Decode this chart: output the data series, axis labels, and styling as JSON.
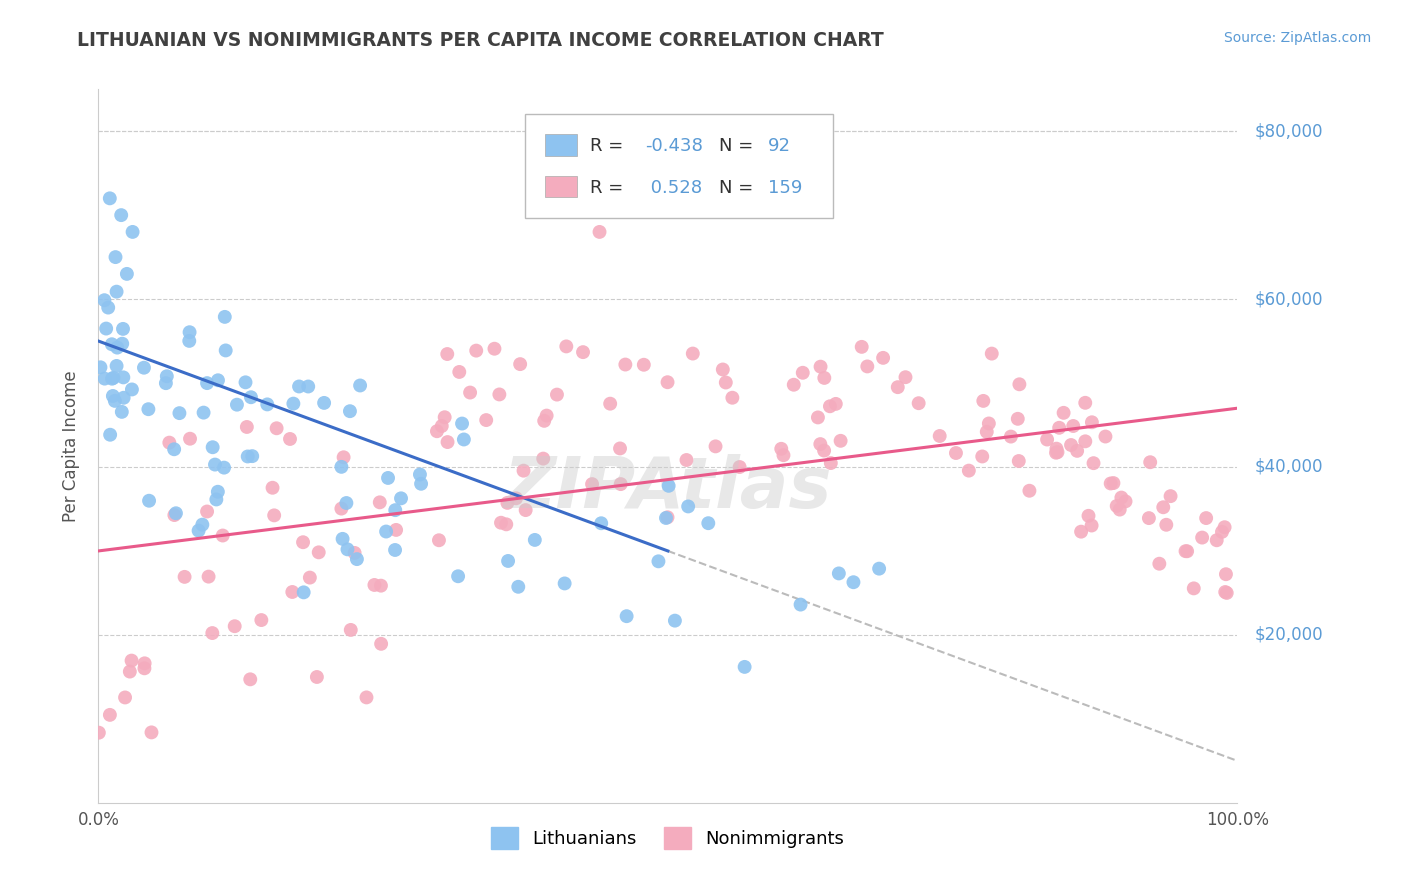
{
  "title": "LITHUANIAN VS NONIMMIGRANTS PER CAPITA INCOME CORRELATION CHART",
  "source_text": "Source: ZipAtlas.com",
  "ylabel": "Per Capita Income",
  "xlim": [
    0.0,
    100.0
  ],
  "ylim": [
    0,
    85000
  ],
  "yticks": [
    20000,
    40000,
    60000,
    80000
  ],
  "ytick_labels": [
    "$20,000",
    "$40,000",
    "$60,000",
    "$80,000"
  ],
  "xtick_labels": [
    "0.0%",
    "100.0%"
  ],
  "legend_labels": [
    "Lithuanians",
    "Nonimmigrants"
  ],
  "r_blue": -0.438,
  "n_blue": 92,
  "r_pink": 0.528,
  "n_pink": 159,
  "blue_color": "#8EC3F0",
  "pink_color": "#F4ACBE",
  "blue_line_color": "#3B6CC7",
  "pink_line_color": "#E85A8A",
  "dashed_color": "#BBBBBB",
  "grid_color": "#CCCCCC",
  "background_color": "#FFFFFF",
  "title_color": "#404040",
  "label_color": "#5B9BD5",
  "source_color": "#5B9BD5",
  "blue_line_x0": 0,
  "blue_line_y0": 55000,
  "blue_line_x1": 50,
  "blue_line_y1": 30000,
  "blue_dash_x0": 50,
  "blue_dash_y0": 30000,
  "blue_dash_x1": 100,
  "blue_dash_y1": 5000,
  "pink_line_x0": 0,
  "pink_line_y0": 30000,
  "pink_line_x1": 100,
  "pink_line_y1": 47000,
  "watermark": "ZIPAtlas",
  "watermark_color": "#CCCCCC"
}
